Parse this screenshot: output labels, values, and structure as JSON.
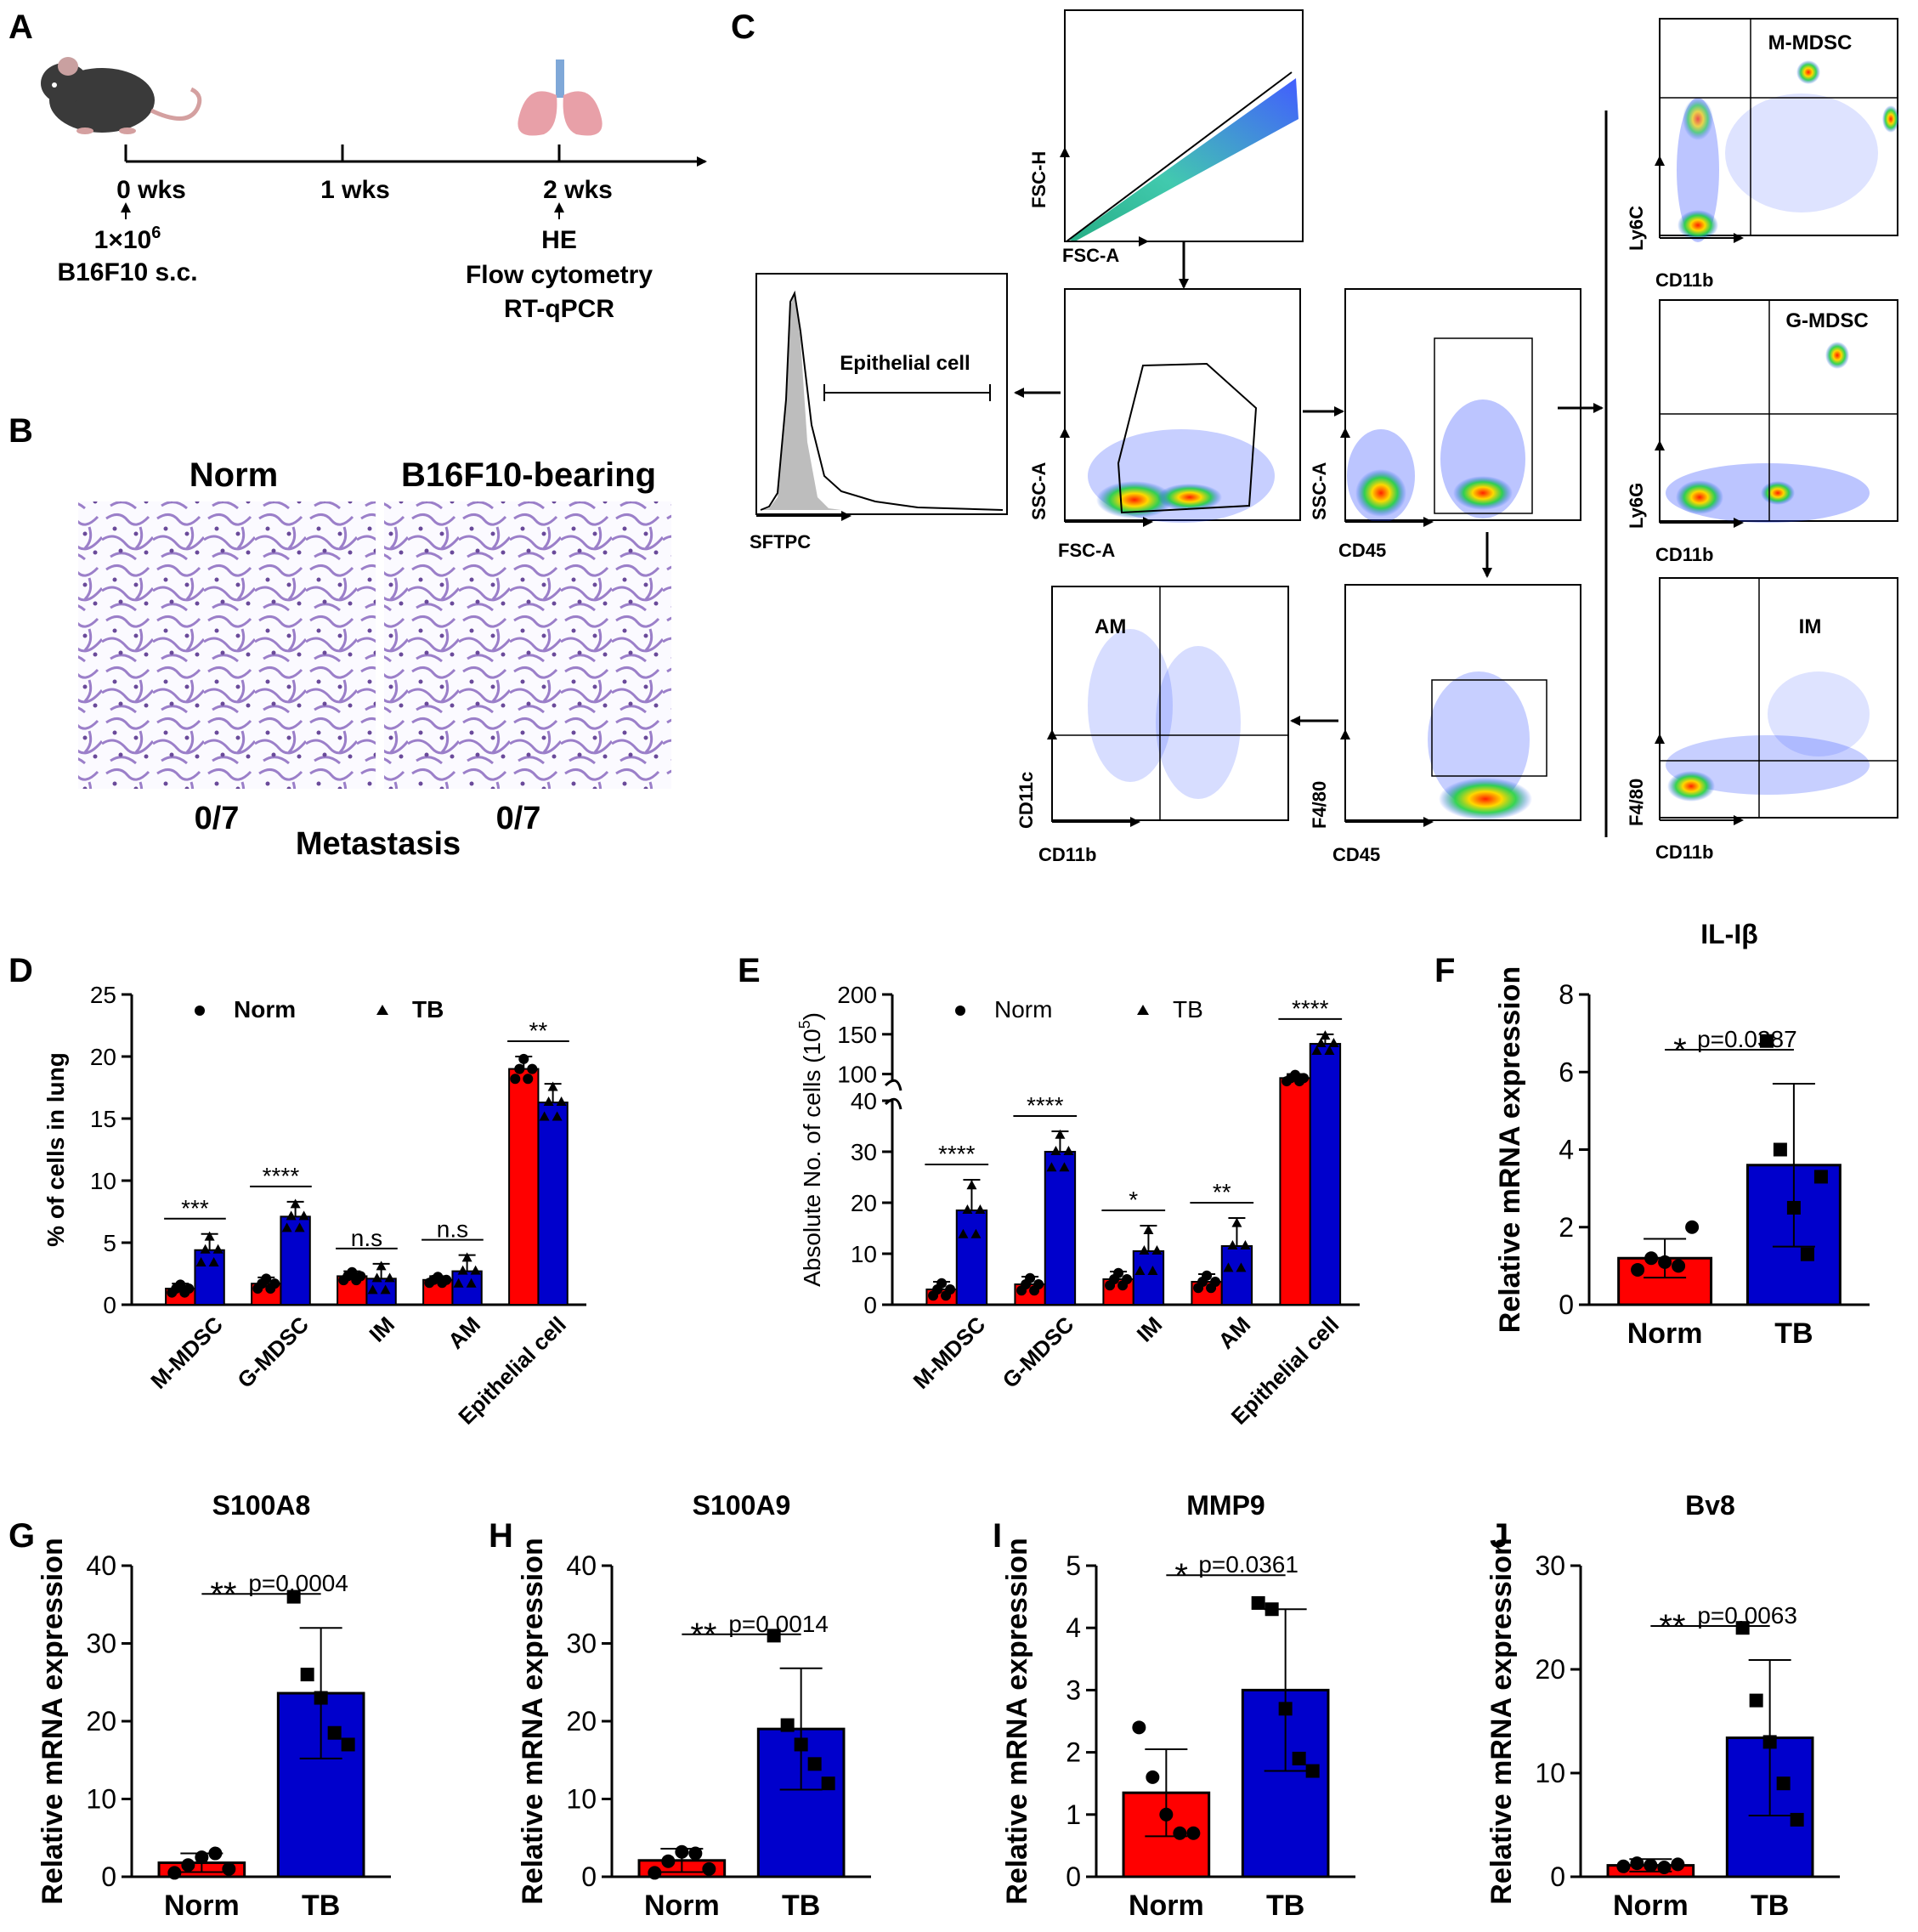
{
  "colors": {
    "norm": "#ff0000",
    "tb": "#0000cc",
    "axis": "#000000",
    "tissue": "#9b7fc9"
  },
  "panels": {
    "A": {
      "label": "A",
      "ticks": [
        "0 wks",
        "1 wks",
        "2 wks"
      ],
      "injection_dose": "1×10",
      "injection_exp": "6",
      "injection_line2": "B16F10 s.c.",
      "assays": [
        "HE",
        "Flow cytometry",
        "RT-qPCR"
      ]
    },
    "B": {
      "label": "B",
      "titles": [
        "Norm",
        "B16F10-bearing"
      ],
      "counts": [
        "0/7",
        "0/7"
      ],
      "caption": "Metastasis"
    },
    "C": {
      "label": "C",
      "plots": {
        "singlets": {
          "x": "FSC-A",
          "y": "FSC-H"
        },
        "cells": {
          "x": "FSC-A",
          "y": "SSC-A"
        },
        "epi": {
          "x": "SFTPC",
          "gate": "Epithelial cell"
        },
        "cd45": {
          "x": "CD45",
          "y": "SSC-A"
        },
        "mac": {
          "x": "CD45",
          "y": "F4/80"
        },
        "am": {
          "x": "CD11b",
          "y": "CD11c",
          "gate": "AM"
        },
        "mmdsc": {
          "x": "CD11b",
          "y": "Ly6C",
          "gate": "M-MDSC"
        },
        "gmdsc": {
          "x": "CD11b",
          "y": "Ly6G",
          "gate": "G-MDSC"
        },
        "im": {
          "x": "CD11b",
          "y": "F4/80",
          "gate": "IM"
        }
      }
    }
  },
  "chart_data": [
    {
      "id": "D",
      "panel": "D",
      "type": "bar",
      "ylabel": "% of  cells in lung",
      "ylim": [
        0,
        25
      ],
      "yticks": [
        0,
        5,
        10,
        15,
        20,
        25
      ],
      "categories": [
        "M-MDSC",
        "G-MDSC",
        "IM",
        "AM",
        "Epithelial cell"
      ],
      "legend": [
        "Norm",
        "TB"
      ],
      "series": [
        {
          "name": "Norm",
          "values": [
            1.3,
            1.7,
            2.3,
            2.0,
            19.0
          ],
          "errors": [
            0.4,
            0.5,
            0.4,
            0.3,
            1.0
          ]
        },
        {
          "name": "TB",
          "values": [
            4.4,
            7.1,
            2.1,
            2.7,
            16.3
          ],
          "errors": [
            1.3,
            1.2,
            1.2,
            1.3,
            1.5
          ]
        }
      ],
      "significance": [
        "***",
        "****",
        "n.s",
        "n.s",
        "**"
      ]
    },
    {
      "id": "E",
      "panel": "E",
      "type": "bar",
      "ylabel": "Absolute No. of cells (10",
      "ylabel_exp": "5",
      "ylabel_end": ")",
      "yticks": [
        0,
        10,
        20,
        30,
        40,
        100,
        150,
        200
      ],
      "axis_break": [
        40,
        90
      ],
      "categories": [
        "M-MDSC",
        "G-MDSC",
        "IM",
        "AM",
        "Epithelial cell"
      ],
      "legend": [
        "Norm",
        "TB"
      ],
      "series": [
        {
          "name": "Norm",
          "values": [
            3,
            4,
            5,
            4.5,
            95
          ],
          "errors": [
            1.5,
            1.5,
            1.5,
            1.5,
            5
          ]
        },
        {
          "name": "TB",
          "values": [
            18.5,
            30,
            10.5,
            11.5,
            138
          ],
          "errors": [
            6,
            4,
            5,
            5.5,
            12
          ]
        }
      ],
      "significance": [
        "****",
        "****",
        "*",
        "**",
        "****"
      ]
    },
    {
      "id": "F",
      "panel": "F",
      "type": "bar",
      "title": "IL-Iβ",
      "ylabel": "Relative mRNA expression",
      "ylim": [
        0,
        8
      ],
      "yticks": [
        0,
        2,
        4,
        6,
        8
      ],
      "categories": [
        "Norm",
        "TB"
      ],
      "values": [
        1.2,
        3.6
      ],
      "errors": [
        0.5,
        2.1
      ],
      "points": [
        [
          0.9,
          1.2,
          1.1,
          1.0,
          2.0
        ],
        [
          6.8,
          4.0,
          2.5,
          1.3,
          3.3
        ]
      ],
      "sig": "*",
      "p": "p=0.0387"
    },
    {
      "id": "G",
      "panel": "G",
      "type": "bar",
      "title": "S100A8",
      "ylabel": "Relative mRNA expression",
      "ylim": [
        0,
        40
      ],
      "yticks": [
        0,
        10,
        20,
        30,
        40
      ],
      "categories": [
        "Norm",
        "TB"
      ],
      "values": [
        1.8,
        23.6
      ],
      "errors": [
        1.2,
        8.4
      ],
      "points": [
        [
          0.5,
          1.5,
          2.5,
          3.0,
          1.0
        ],
        [
          36.0,
          26.0,
          23.0,
          18.5,
          17.0
        ]
      ],
      "sig": "**",
      "p": "p=0.0004"
    },
    {
      "id": "H",
      "panel": "H",
      "type": "bar",
      "title": "S100A9",
      "ylabel": "Relative mRNA expression",
      "ylim": [
        0,
        40
      ],
      "yticks": [
        0,
        10,
        20,
        30,
        40
      ],
      "categories": [
        "Norm",
        "TB"
      ],
      "values": [
        2.1,
        19.0
      ],
      "errors": [
        1.5,
        7.8
      ],
      "points": [
        [
          0.5,
          2.0,
          3.2,
          3.0,
          1.0
        ],
        [
          31.0,
          19.5,
          17.0,
          14.5,
          12.0
        ]
      ],
      "sig": "**",
      "p": "p=0.0014"
    },
    {
      "id": "I",
      "panel": "I",
      "type": "bar",
      "title": "MMP9",
      "ylabel": "Relative mRNA expression",
      "ylim": [
        0,
        5
      ],
      "yticks": [
        0,
        1,
        2,
        3,
        4,
        5
      ],
      "categories": [
        "Norm",
        "TB"
      ],
      "values": [
        1.35,
        3.0
      ],
      "errors": [
        0.7,
        1.3
      ],
      "points": [
        [
          2.4,
          1.6,
          1.0,
          0.7,
          0.7
        ],
        [
          4.4,
          4.3,
          2.7,
          1.9,
          1.7
        ]
      ],
      "sig": "*",
      "p": "p=0.0361"
    },
    {
      "id": "J",
      "panel": "J",
      "type": "bar",
      "title": "Bv8",
      "ylabel": "Relative mRNA expression",
      "ylim": [
        0,
        30
      ],
      "yticks": [
        0,
        10,
        20,
        30
      ],
      "categories": [
        "Norm",
        "TB"
      ],
      "values": [
        1.1,
        13.4
      ],
      "errors": [
        0.6,
        7.5
      ],
      "points": [
        [
          1.0,
          1.3,
          1.1,
          0.9,
          1.2
        ],
        [
          24.0,
          17.0,
          13.0,
          9.0,
          5.5
        ]
      ],
      "sig": "**",
      "p": "p=0.0063"
    }
  ]
}
